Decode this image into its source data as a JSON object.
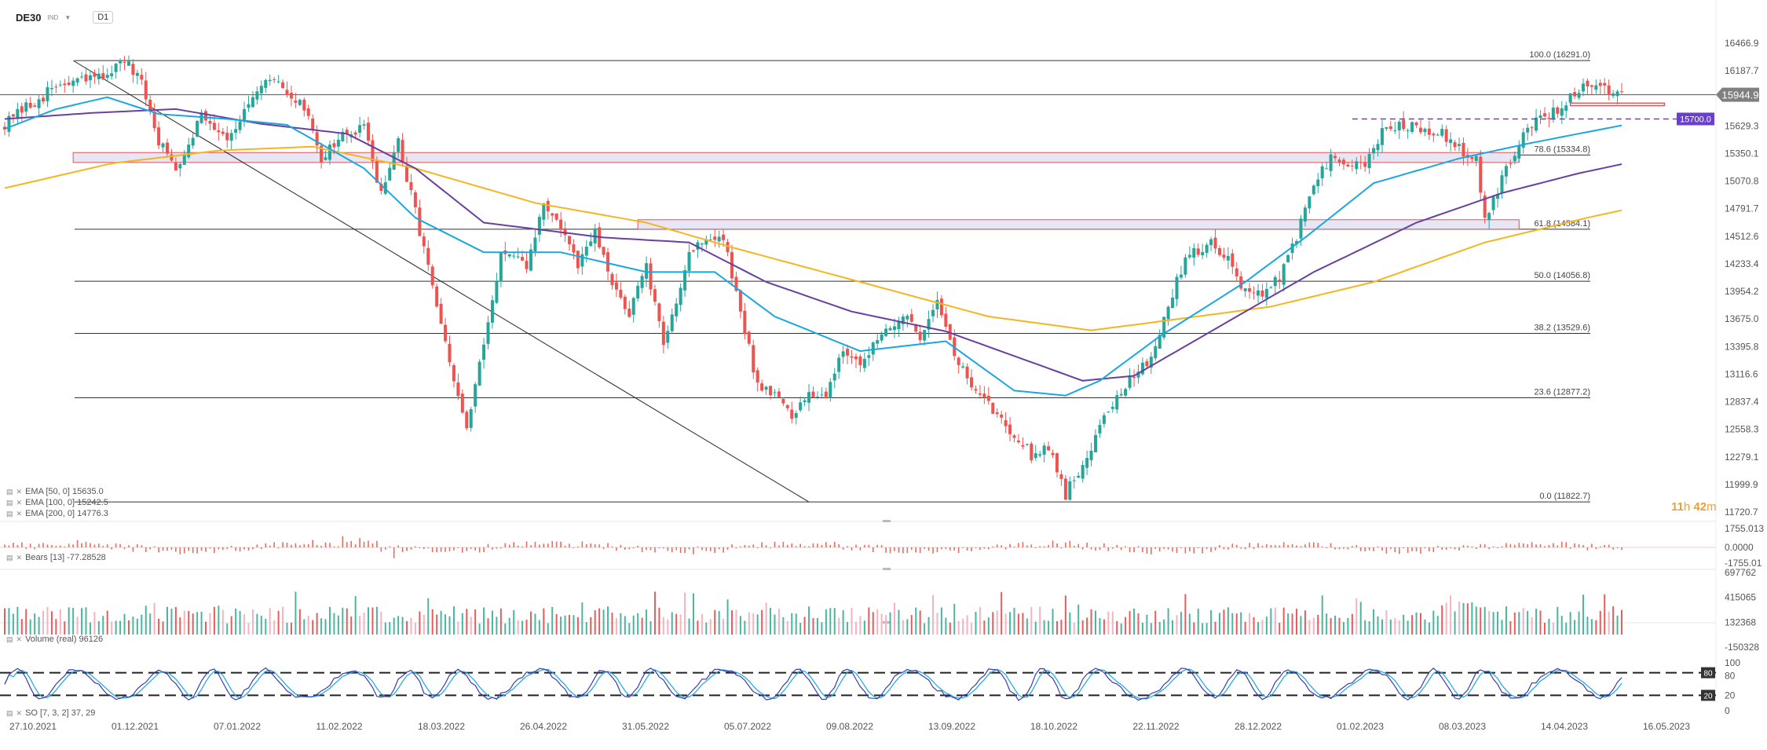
{
  "header": {
    "symbol": "DE30",
    "subtitle": "IND",
    "timeframe": "D1"
  },
  "timer": {
    "hours": "11",
    "h": "h",
    "minutes": "42",
    "m": "m"
  },
  "legend": {
    "ema50": "EMA [50, 0]  15635.0",
    "ema100": "EMA [100, 0]  15242.5",
    "ema200": "EMA [200, 0]  14776.3",
    "bears": "Bears [13]  -77.28528",
    "volume": "Volume (real)  96126",
    "so": "SO [7, 3, 2]  37, 29"
  },
  "colors": {
    "up": "#26a69a",
    "down": "#ef5350",
    "ema50": "#1aa7e0",
    "ema100": "#6a3fa0",
    "ema200": "#f5b521",
    "zone_fill": "#e6e6f5",
    "zone_border": "#e05555",
    "label_current": "#808080",
    "label_level": "#6a3fd0"
  },
  "chart_data": [
    {
      "type": "candlestick",
      "ylim": [
        11720.7,
        16466.9
      ],
      "y_ticks": [
        "16466.9",
        "16187.7",
        "15908.6",
        "15629.3",
        "15350.1",
        "15070.8",
        "14791.7",
        "14512.6",
        "14233.4",
        "13954.2",
        "13675.0",
        "13395.8",
        "13116.6",
        "12837.4",
        "12558.3",
        "12279.1",
        "11999.9",
        "11720.7"
      ],
      "x_ticks": [
        "27.10.2021",
        "01.12.2021",
        "07.01.2022",
        "11.02.2022",
        "18.03.2022",
        "26.04.2022",
        "31.05.2022",
        "05.07.2022",
        "09.08.2022",
        "13.09.2022",
        "18.10.2022",
        "22.11.2022",
        "28.12.2022",
        "01.02.2023",
        "08.03.2023",
        "14.04.2023",
        "16.05.2023"
      ],
      "close_path": [
        [
          0,
          15650
        ],
        [
          12,
          16030
        ],
        [
          22,
          16120
        ],
        [
          28,
          16280
        ],
        [
          32,
          16050
        ],
        [
          36,
          15480
        ],
        [
          40,
          15200
        ],
        [
          46,
          15750
        ],
        [
          52,
          15520
        ],
        [
          58,
          15880
        ],
        [
          62,
          16100
        ],
        [
          66,
          15980
        ],
        [
          71,
          15750
        ],
        [
          74,
          15300
        ],
        [
          78,
          15500
        ],
        [
          84,
          15600
        ],
        [
          88,
          14950
        ],
        [
          92,
          15450
        ],
        [
          98,
          14400
        ],
        [
          104,
          13200
        ],
        [
          108,
          12560
        ],
        [
          112,
          13400
        ],
        [
          116,
          14350
        ],
        [
          122,
          14200
        ],
        [
          126,
          14850
        ],
        [
          130,
          14600
        ],
        [
          134,
          14200
        ],
        [
          138,
          14550
        ],
        [
          142,
          14000
        ],
        [
          146,
          13750
        ],
        [
          150,
          14200
        ],
        [
          154,
          13400
        ],
        [
          160,
          14350
        ],
        [
          164,
          14500
        ],
        [
          168,
          14480
        ],
        [
          172,
          13750
        ],
        [
          176,
          13000
        ],
        [
          180,
          12950
        ],
        [
          184,
          12650
        ],
        [
          188,
          12950
        ],
        [
          192,
          12900
        ],
        [
          196,
          13400
        ],
        [
          200,
          13150
        ],
        [
          204,
          13520
        ],
        [
          210,
          13700
        ],
        [
          214,
          13500
        ],
        [
          218,
          13900
        ],
        [
          222,
          13300
        ],
        [
          226,
          13000
        ],
        [
          230,
          12800
        ],
        [
          236,
          12520
        ],
        [
          240,
          12300
        ],
        [
          244,
          12400
        ],
        [
          248,
          11900
        ],
        [
          252,
          12200
        ],
        [
          256,
          12600
        ],
        [
          260,
          12900
        ],
        [
          264,
          13100
        ],
        [
          268,
          13300
        ],
        [
          272,
          13800
        ],
        [
          276,
          14300
        ],
        [
          282,
          14450
        ],
        [
          286,
          14300
        ],
        [
          290,
          13950
        ],
        [
          294,
          13900
        ],
        [
          298,
          14100
        ],
        [
          302,
          14500
        ],
        [
          306,
          15050
        ],
        [
          310,
          15300
        ],
        [
          314,
          15200
        ],
        [
          318,
          15250
        ],
        [
          322,
          15550
        ],
        [
          326,
          15650
        ],
        [
          332,
          15600
        ],
        [
          336,
          15550
        ],
        [
          340,
          15400
        ],
        [
          344,
          15300
        ],
        [
          346,
          14700
        ],
        [
          350,
          15100
        ],
        [
          354,
          15450
        ],
        [
          358,
          15700
        ],
        [
          364,
          15800
        ],
        [
          368,
          16000
        ],
        [
          372,
          16080
        ],
        [
          376,
          15950
        ],
        [
          378,
          15944.9
        ]
      ],
      "ema50_path": [
        [
          0,
          15600
        ],
        [
          12,
          15800
        ],
        [
          24,
          15920
        ],
        [
          36,
          15750
        ],
        [
          52,
          15700
        ],
        [
          66,
          15640
        ],
        [
          84,
          15200
        ],
        [
          96,
          14700
        ],
        [
          112,
          14350
        ],
        [
          130,
          14350
        ],
        [
          150,
          14150
        ],
        [
          166,
          14150
        ],
        [
          180,
          13700
        ],
        [
          200,
          13350
        ],
        [
          220,
          13450
        ],
        [
          236,
          12950
        ],
        [
          248,
          12900
        ],
        [
          256,
          13050
        ],
        [
          270,
          13500
        ],
        [
          290,
          14050
        ],
        [
          304,
          14500
        ],
        [
          320,
          15050
        ],
        [
          340,
          15300
        ],
        [
          356,
          15450
        ],
        [
          378,
          15635
        ]
      ],
      "ema100_path": [
        [
          0,
          15700
        ],
        [
          20,
          15760
        ],
        [
          40,
          15800
        ],
        [
          60,
          15650
        ],
        [
          80,
          15550
        ],
        [
          96,
          15200
        ],
        [
          112,
          14650
        ],
        [
          140,
          14500
        ],
        [
          160,
          14450
        ],
        [
          178,
          14050
        ],
        [
          198,
          13750
        ],
        [
          220,
          13550
        ],
        [
          236,
          13300
        ],
        [
          252,
          13050
        ],
        [
          264,
          13100
        ],
        [
          290,
          13750
        ],
        [
          306,
          14150
        ],
        [
          330,
          14650
        ],
        [
          350,
          14950
        ],
        [
          368,
          15150
        ],
        [
          378,
          15242.5
        ]
      ],
      "ema200_path": [
        [
          0,
          15000
        ],
        [
          25,
          15250
        ],
        [
          50,
          15380
        ],
        [
          72,
          15420
        ],
        [
          96,
          15200
        ],
        [
          124,
          14850
        ],
        [
          150,
          14650
        ],
        [
          170,
          14400
        ],
        [
          200,
          14050
        ],
        [
          230,
          13700
        ],
        [
          254,
          13560
        ],
        [
          270,
          13650
        ],
        [
          296,
          13800
        ],
        [
          320,
          14050
        ],
        [
          346,
          14450
        ],
        [
          370,
          14700
        ],
        [
          378,
          14776.3
        ]
      ],
      "trendline": [
        [
          16,
          16291
        ],
        [
          188,
          11822.7
        ]
      ],
      "fib_levels": [
        {
          "label": "100.0 (16291.0)",
          "value": 16291.0
        },
        {
          "label": "78.6 (15334.8)",
          "value": 15334.8
        },
        {
          "label": "61.8 (14584.1)",
          "value": 14584.1
        },
        {
          "label": "50.0 (14056.8)",
          "value": 14056.8
        },
        {
          "label": "38.2 (13529.6)",
          "value": 13529.6
        },
        {
          "label": "23.6 (12877.2)",
          "value": 12877.2
        },
        {
          "label": "0.0 (11822.7)",
          "value": 11822.7
        }
      ],
      "horizontal_line": 15944.9,
      "zones": [
        {
          "from": [
            16,
            15360
          ],
          "to": [
            354,
            15260
          ]
        },
        {
          "from": [
            148,
            14680
          ],
          "to": [
            354,
            14584
          ]
        }
      ],
      "small_zone": {
        "x": [
          366,
          388
        ],
        "y": [
          15860,
          15835
        ]
      },
      "dashed_level": {
        "value": 15700.0,
        "x_start": 315,
        "label": "15700.0"
      },
      "current_price": {
        "value": 15944.9,
        "label": "15944.9"
      }
    },
    {
      "type": "histogram",
      "name": "Bears [13]",
      "ylim": [
        -1755.01,
        1755.013
      ],
      "y_ticks": [
        "1755.013",
        "0.0000",
        "-1755.01"
      ],
      "value": -77.28528
    },
    {
      "type": "bar",
      "name": "Volume (real)",
      "ylim": [
        -150328,
        697762
      ],
      "y_ticks": [
        "697762",
        "415065",
        "132368",
        "-150328"
      ],
      "value": 96126
    },
    {
      "type": "line",
      "name": "SO [7, 3, 2]",
      "ylim": [
        0,
        100
      ],
      "y_ticks": [
        "100",
        "80",
        "20",
        "0"
      ],
      "levels": [
        {
          "value": 80,
          "label": "80"
        },
        {
          "value": 20,
          "label": "20"
        }
      ],
      "values": [
        37,
        29
      ]
    }
  ]
}
